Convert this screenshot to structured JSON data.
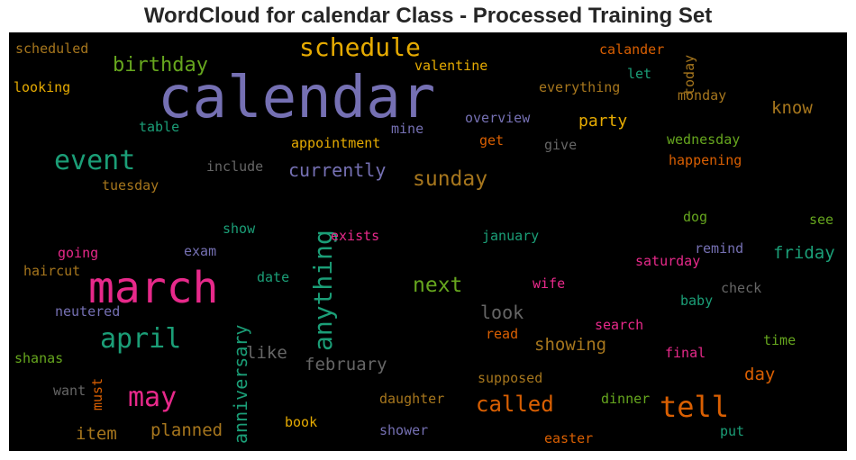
{
  "title": "WordCloud for calendar Class - Processed Training Set",
  "chart_data": {
    "type": "wordcloud",
    "background": "#000000",
    "palette": "Dark2",
    "words": [
      {
        "text": "calendar",
        "color": "#7570b3"
      },
      {
        "text": "march",
        "color": "#e7298a"
      },
      {
        "text": "schedule",
        "color": "#e6ab02"
      },
      {
        "text": "event",
        "color": "#1b9e77"
      },
      {
        "text": "anything",
        "color": "#1b9e77"
      },
      {
        "text": "may",
        "color": "#e7298a"
      },
      {
        "text": "april",
        "color": "#1b9e77"
      },
      {
        "text": "tell",
        "color": "#d95f02"
      },
      {
        "text": "birthday",
        "color": "#66a61e"
      },
      {
        "text": "sunday",
        "color": "#a6761d"
      },
      {
        "text": "next",
        "color": "#66a61e"
      },
      {
        "text": "called",
        "color": "#d95f02"
      },
      {
        "text": "anniversary",
        "color": "#1b9e77"
      },
      {
        "text": "currently",
        "color": "#7570b3"
      },
      {
        "text": "party",
        "color": "#e6ab02"
      },
      {
        "text": "friday",
        "color": "#1b9e77"
      },
      {
        "text": "know",
        "color": "#a6761d"
      },
      {
        "text": "february",
        "color": "#666666"
      },
      {
        "text": "showing",
        "color": "#a6761d"
      },
      {
        "text": "look",
        "color": "#666666"
      },
      {
        "text": "planned",
        "color": "#a6761d"
      },
      {
        "text": "item",
        "color": "#a6761d"
      },
      {
        "text": "like",
        "color": "#666666"
      },
      {
        "text": "day",
        "color": "#d95f02"
      },
      {
        "text": "scheduled",
        "color": "#a6761d"
      },
      {
        "text": "looking",
        "color": "#e6ab02"
      },
      {
        "text": "valentine",
        "color": "#e6ab02"
      },
      {
        "text": "calander",
        "color": "#d95f02"
      },
      {
        "text": "let",
        "color": "#1b9e77"
      },
      {
        "text": "today",
        "color": "#a6761d"
      },
      {
        "text": "everything",
        "color": "#a6761d"
      },
      {
        "text": "monday",
        "color": "#a6761d"
      },
      {
        "text": "table",
        "color": "#1b9e77"
      },
      {
        "text": "mine",
        "color": "#7570b3"
      },
      {
        "text": "overview",
        "color": "#7570b3"
      },
      {
        "text": "appointment",
        "color": "#e6ab02"
      },
      {
        "text": "get",
        "color": "#d95f02"
      },
      {
        "text": "give",
        "color": "#666666"
      },
      {
        "text": "wednesday",
        "color": "#66a61e"
      },
      {
        "text": "happening",
        "color": "#d95f02"
      },
      {
        "text": "include",
        "color": "#666666"
      },
      {
        "text": "tuesday",
        "color": "#a6761d"
      },
      {
        "text": "dog",
        "color": "#66a61e"
      },
      {
        "text": "see",
        "color": "#66a61e"
      },
      {
        "text": "show",
        "color": "#1b9e77"
      },
      {
        "text": "exists",
        "color": "#e7298a"
      },
      {
        "text": "january",
        "color": "#1b9e77"
      },
      {
        "text": "remind",
        "color": "#7570b3"
      },
      {
        "text": "going",
        "color": "#e7298a"
      },
      {
        "text": "exam",
        "color": "#7570b3"
      },
      {
        "text": "saturday",
        "color": "#e7298a"
      },
      {
        "text": "haircut",
        "color": "#a6761d"
      },
      {
        "text": "date",
        "color": "#1b9e77"
      },
      {
        "text": "wife",
        "color": "#e7298a"
      },
      {
        "text": "check",
        "color": "#666666"
      },
      {
        "text": "baby",
        "color": "#1b9e77"
      },
      {
        "text": "neutered",
        "color": "#7570b3"
      },
      {
        "text": "search",
        "color": "#e7298a"
      },
      {
        "text": "read",
        "color": "#d95f02"
      },
      {
        "text": "time",
        "color": "#66a61e"
      },
      {
        "text": "final",
        "color": "#e7298a"
      },
      {
        "text": "shanas",
        "color": "#66a61e"
      },
      {
        "text": "supposed",
        "color": "#a6761d"
      },
      {
        "text": "must",
        "color": "#d95f02"
      },
      {
        "text": "want",
        "color": "#666666"
      },
      {
        "text": "daughter",
        "color": "#a6761d"
      },
      {
        "text": "dinner",
        "color": "#66a61e"
      },
      {
        "text": "book",
        "color": "#e6ab02"
      },
      {
        "text": "shower",
        "color": "#7570b3"
      },
      {
        "text": "put",
        "color": "#1b9e77"
      },
      {
        "text": "easter",
        "color": "#d95f02"
      }
    ]
  }
}
